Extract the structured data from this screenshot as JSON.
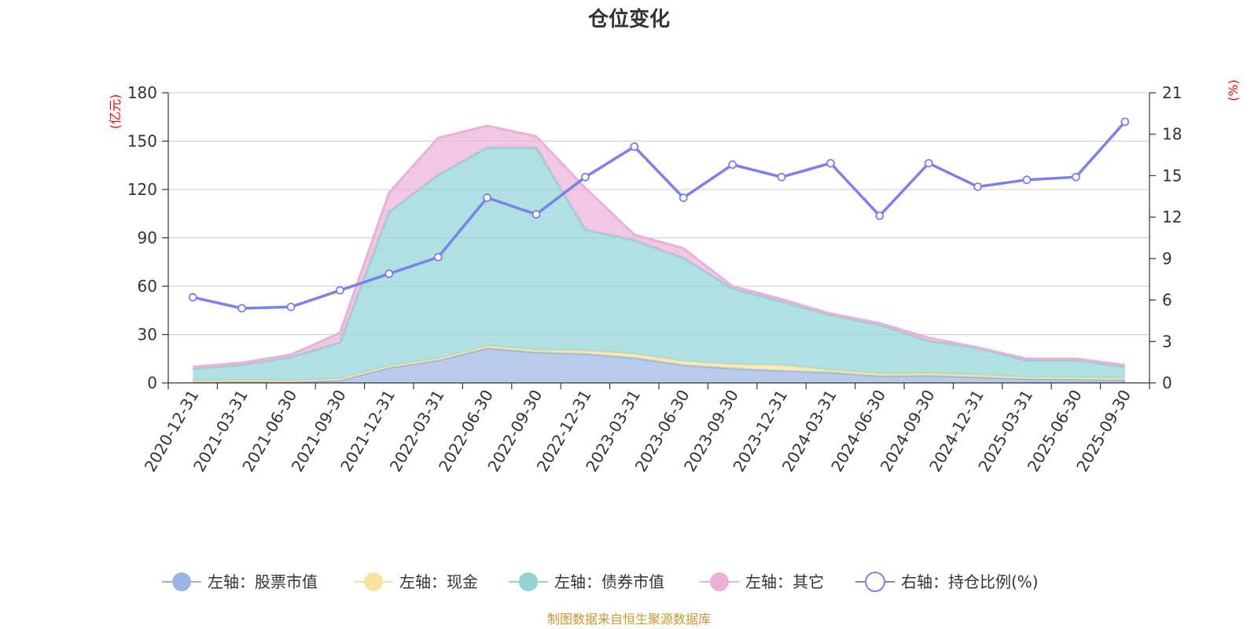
{
  "title": "仓位变化",
  "source": "制图数据来自恒生聚源数据库",
  "left_unit": "(亿元)",
  "right_unit": "(%)",
  "colors": {
    "stock": "#9ab5e1",
    "cash": "#f6e3a1",
    "bond": "#8fd3d4",
    "other": "#e9b1d7",
    "ratio": "#7b7ff0",
    "source": "#c8962c",
    "unit": "#ff0000"
  },
  "legend": [
    {
      "key": "stock",
      "label": "左轴：股票市值"
    },
    {
      "key": "cash",
      "label": "左轴：现金"
    },
    {
      "key": "bond",
      "label": "左轴：债券市值"
    },
    {
      "key": "other",
      "label": "左轴：其它"
    },
    {
      "key": "ratio",
      "label": "右轴：持仓比例(%)"
    }
  ],
  "chart_data": {
    "type": "area",
    "title": "仓位变化",
    "categories": [
      "2020-12-31",
      "2021-03-31",
      "2021-06-30",
      "2021-09-30",
      "2021-12-31",
      "2022-03-31",
      "2022-06-30",
      "2022-09-30",
      "2022-12-31",
      "2023-03-31",
      "2023-06-30",
      "2023-09-30",
      "2023-12-31",
      "2024-03-31",
      "2024-06-30",
      "2024-09-30",
      "2024-12-31",
      "2025-03-31",
      "2025-06-30",
      "2025-09-30"
    ],
    "left_axis": {
      "label": "(亿元)",
      "ylim": [
        0,
        180
      ],
      "ticks": [
        0,
        30,
        60,
        90,
        120,
        150,
        180
      ]
    },
    "right_axis": {
      "label": "(%)",
      "ylim": [
        0,
        21
      ],
      "ticks": [
        0,
        3,
        6,
        9,
        12,
        15,
        18,
        21
      ]
    },
    "stacked_series_left": [
      {
        "key": "stock",
        "name": "左轴：股票市值",
        "values": [
          0.6,
          0.7,
          0.6,
          1.6,
          9.5,
          14.0,
          21.5,
          19.0,
          18.0,
          15.5,
          11.0,
          9.0,
          7.5,
          6.5,
          4.2,
          4.5,
          3.5,
          2.5,
          2.2,
          1.8
        ]
      },
      {
        "key": "cash",
        "name": "左轴：现金",
        "values": [
          0.6,
          1.0,
          0.8,
          1.0,
          1.0,
          1.0,
          1.5,
          1.5,
          2.0,
          2.5,
          2.5,
          2.5,
          3.5,
          1.5,
          1.5,
          1.5,
          1.5,
          1.0,
          1.0,
          1.2
        ]
      },
      {
        "key": "bond",
        "name": "左轴：债券市值",
        "values": [
          7.8,
          9.3,
          14.6,
          22.4,
          95.5,
          114.0,
          123.0,
          125.5,
          75.0,
          70.5,
          64.0,
          47.0,
          39.5,
          34.0,
          30.3,
          20.0,
          16.5,
          10.5,
          10.8,
          7.0
        ]
      },
      {
        "key": "other",
        "name": "左轴：其它",
        "values": [
          1.0,
          1.5,
          1.5,
          6.0,
          12.0,
          23.0,
          13.5,
          7.0,
          26.0,
          3.5,
          6.0,
          1.5,
          1.5,
          1.0,
          1.0,
          2.0,
          0.5,
          1.0,
          1.0,
          1.0
        ]
      }
    ],
    "line_series_right": {
      "key": "ratio",
      "name": "右轴：持仓比例(%)",
      "values": [
        6.2,
        5.4,
        5.5,
        6.7,
        7.9,
        9.1,
        13.4,
        12.2,
        14.9,
        17.1,
        13.4,
        15.8,
        14.9,
        15.9,
        12.1,
        15.9,
        14.2,
        14.7,
        14.9,
        18.9
      ]
    }
  }
}
